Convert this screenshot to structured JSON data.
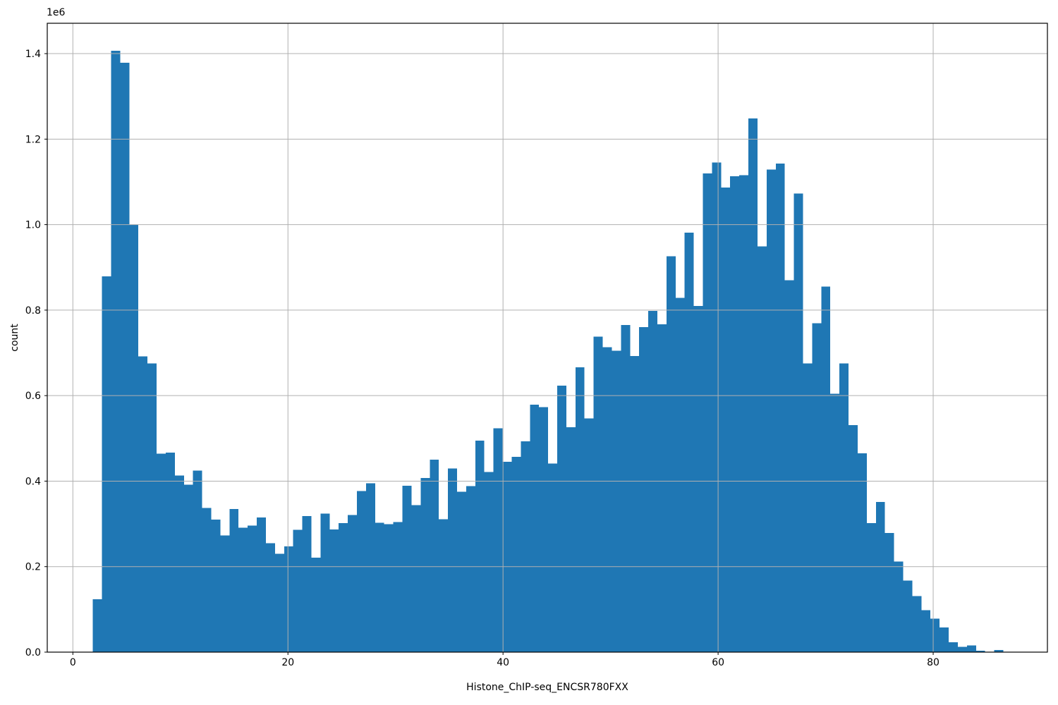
{
  "figure": {
    "offset_label": "1e6",
    "colors": {
      "bar": "#1f77b4",
      "grid": "#b0b0b0",
      "frame": "#000000",
      "text": "#000000",
      "background": "#ffffff"
    }
  },
  "chart_data": {
    "type": "bar",
    "subtype": "histogram",
    "title": "",
    "xlabel": "Histone_ChIP-seq_ENCSR780FXX",
    "ylabel": "count",
    "y_scale_multiplier": "1e6",
    "grid": true,
    "grid_above_bars": true,
    "legend": null,
    "xlim": [
      -2.381,
      90.623
    ],
    "ylim": [
      0,
      1471000
    ],
    "x_ticks": [
      0,
      20,
      40,
      60,
      80
    ],
    "x_tick_labels": [
      "0",
      "20",
      "40",
      "60",
      "80"
    ],
    "y_ticks": [
      0,
      200000,
      400000,
      600000,
      800000,
      1000000,
      1200000,
      1400000
    ],
    "y_tick_labels": [
      "0.0",
      "0.2",
      "0.4",
      "0.6",
      "0.8",
      "1.0",
      "1.2",
      "1.4"
    ],
    "bin_start": 1.862,
    "bin_width": 0.8466,
    "counts": [
      124000,
      879000,
      1407000,
      1379000,
      1000000,
      692000,
      675000,
      464000,
      467000,
      413000,
      392000,
      425000,
      337000,
      310000,
      273000,
      335000,
      291000,
      296000,
      315000,
      255000,
      230000,
      247000,
      286000,
      318000,
      221000,
      324000,
      287000,
      302000,
      321000,
      377000,
      395000,
      303000,
      299000,
      304000,
      389000,
      344000,
      407000,
      450000,
      311000,
      430000,
      375000,
      388000,
      495000,
      421000,
      524000,
      445000,
      457000,
      493000,
      579000,
      573000,
      441000,
      623000,
      526000,
      666000,
      547000,
      738000,
      713000,
      705000,
      765000,
      693000,
      760000,
      798000,
      767000,
      926000,
      829000,
      981000,
      810000,
      1120000,
      1145000,
      1087000,
      1113000,
      1116000,
      1248000,
      949000,
      1129000,
      1143000,
      870000,
      1073000,
      675000,
      769000,
      855000,
      604000,
      675000,
      531000,
      465000,
      302000,
      351000,
      279000,
      212000,
      167000,
      131000,
      98000,
      78000,
      58000,
      23000,
      12000,
      16000,
      3000,
      1000,
      5000
    ]
  }
}
